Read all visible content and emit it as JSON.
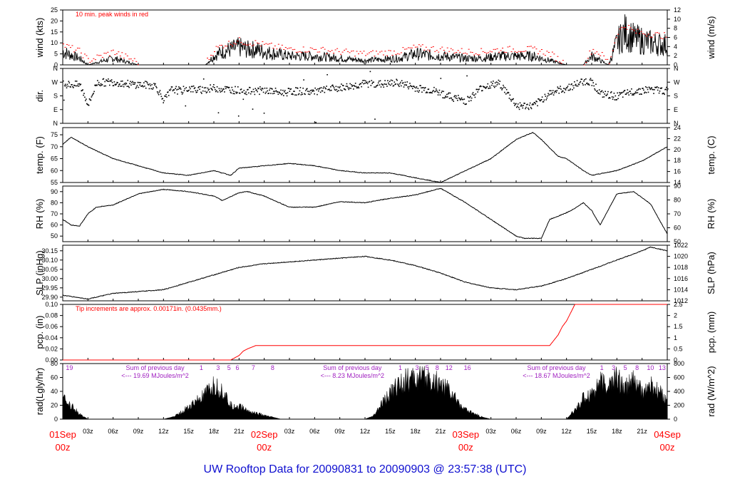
{
  "title": "UW Rooftop Data for 20090831  to  20090903 @ 23:57:38  (UTC)",
  "colors": {
    "line": "#000000",
    "red": "#ff0000",
    "purple": "#a020c0",
    "title": "#1010d0"
  },
  "chart_data": [
    {
      "type": "line",
      "id": "wind",
      "ylabel": "wind (kts)",
      "ylabel_right": "wind (m/s)",
      "ylim": [
        0,
        25
      ],
      "yticks": [
        0,
        5,
        10,
        15,
        20,
        25
      ],
      "right_ticks": [
        0,
        2,
        4,
        6,
        8,
        10,
        12
      ],
      "right_scale": 1.944,
      "annotation": "10 min. peak winds in red",
      "x": [
        0,
        2,
        3,
        6,
        9,
        12,
        15,
        17,
        18,
        19,
        20,
        21,
        22,
        23,
        24,
        27,
        30,
        36,
        40,
        42,
        45,
        48,
        50,
        52,
        54,
        56,
        58,
        60,
        62,
        63,
        64,
        65,
        66,
        67,
        68,
        70,
        72
      ],
      "values": [
        6,
        3,
        0,
        3,
        0,
        0,
        0,
        0,
        4,
        6,
        7,
        8,
        7,
        7,
        6,
        4,
        4,
        2,
        3,
        5,
        4,
        3,
        3,
        4,
        4,
        4,
        2,
        0,
        0,
        4,
        2,
        0,
        10,
        15,
        12,
        10,
        9
      ],
      "peaks": [
        9,
        6,
        2,
        6,
        1,
        0,
        0,
        1,
        7,
        9,
        10,
        11,
        10,
        10,
        9,
        7,
        7,
        5,
        6,
        8,
        7,
        6,
        6,
        7,
        7,
        7,
        5,
        0,
        1,
        7,
        5,
        1,
        15,
        18,
        15,
        14,
        13
      ]
    },
    {
      "type": "scatter",
      "id": "dir",
      "ylabel": "dir.",
      "ylim": [
        0,
        360
      ],
      "tick_labels": [
        "N",
        "E",
        "S",
        "W",
        "N"
      ],
      "tick_values": [
        0,
        90,
        180,
        270,
        360
      ],
      "x": [
        0,
        2,
        3,
        4,
        6,
        8,
        10,
        11,
        12,
        13,
        14,
        15,
        16,
        18,
        20,
        22,
        24,
        26,
        28,
        30,
        32,
        34,
        36,
        38,
        40,
        42,
        44,
        46,
        48,
        50,
        52,
        54,
        56,
        58,
        60,
        62,
        63,
        64,
        66,
        68,
        70,
        72
      ],
      "values": [
        255,
        250,
        120,
        265,
        270,
        255,
        250,
        245,
        150,
        225,
        210,
        230,
        215,
        230,
        220,
        210,
        215,
        200,
        210,
        205,
        225,
        240,
        260,
        255,
        265,
        230,
        215,
        175,
        145,
        240,
        260,
        115,
        110,
        200,
        230,
        275,
        270,
        190,
        175,
        210,
        220,
        210
      ]
    },
    {
      "type": "line",
      "id": "temp",
      "ylabel": "temp. (F)",
      "ylabel_right": "temp. (C)",
      "ylim": [
        55,
        78
      ],
      "yticks": [
        55,
        60,
        65,
        70,
        75
      ],
      "right_ticks": [
        14,
        16,
        18,
        20,
        22,
        24
      ],
      "x": [
        0,
        1,
        3,
        6,
        9,
        12,
        15,
        18,
        20,
        21,
        24,
        27,
        30,
        33,
        36,
        39,
        42,
        45,
        48,
        51,
        54,
        56,
        57,
        59,
        60,
        62,
        63,
        66,
        69,
        72
      ],
      "values": [
        71,
        74,
        70,
        65,
        62,
        59,
        58,
        60,
        58,
        61,
        62,
        63,
        62,
        60,
        59,
        59,
        57,
        55,
        60,
        65,
        73,
        76,
        73,
        66,
        65,
        60,
        58,
        60,
        64,
        70
      ]
    },
    {
      "type": "line",
      "id": "rh",
      "ylabel": "RH (%)",
      "ylabel_right": "RH (%)",
      "ylim": [
        45,
        95
      ],
      "yticks": [
        50,
        60,
        70,
        80,
        90
      ],
      "right_ticks": [
        50,
        60,
        70,
        80,
        90
      ],
      "x": [
        0,
        1,
        2,
        3,
        4,
        6,
        9,
        12,
        15,
        18,
        19,
        21,
        22,
        24,
        27,
        30,
        33,
        36,
        39,
        42,
        45,
        48,
        51,
        54,
        55,
        57,
        58,
        60,
        61,
        62,
        63,
        64,
        66,
        68,
        70,
        72
      ],
      "values": [
        65,
        60,
        59,
        70,
        76,
        78,
        88,
        92,
        90,
        86,
        82,
        89,
        90,
        86,
        76,
        76,
        81,
        80,
        84,
        87,
        93,
        80,
        65,
        50,
        48,
        48,
        65,
        71,
        75,
        80,
        73,
        60,
        88,
        90,
        79,
        52
      ]
    },
    {
      "type": "line",
      "id": "slp",
      "ylabel": "SLP (inHg)",
      "ylabel_right": "SLP (hPa)",
      "ylim": [
        29.88,
        30.18
      ],
      "yticks": [
        29.9,
        29.95,
        30.0,
        30.05,
        30.1,
        30.15
      ],
      "tick_labels": [
        "29.90",
        "29.95",
        "30.00",
        "30.05",
        "30.10",
        "30.15"
      ],
      "right_ticks": [
        1012,
        1014,
        1016,
        1018,
        1020,
        1022
      ],
      "x": [
        0,
        3,
        6,
        9,
        12,
        15,
        18,
        21,
        24,
        27,
        30,
        33,
        36,
        39,
        42,
        45,
        48,
        51,
        54,
        57,
        60,
        63,
        66,
        69,
        70,
        72
      ],
      "values": [
        29.91,
        29.89,
        29.92,
        29.93,
        29.94,
        29.98,
        30.02,
        30.06,
        30.08,
        30.09,
        30.1,
        30.11,
        30.12,
        30.1,
        30.07,
        30.03,
        29.98,
        29.95,
        29.94,
        29.96,
        30.0,
        30.05,
        30.1,
        30.15,
        30.17,
        30.15
      ]
    },
    {
      "type": "line",
      "id": "pcp",
      "ylabel": "pcp. (in)",
      "ylabel_right": "pcp. (mm)",
      "ylim": [
        0,
        0.1
      ],
      "yticks": [
        0,
        0.02,
        0.04,
        0.06,
        0.08,
        0.1
      ],
      "tick_labels": [
        "0.00",
        "0.02",
        "0.04",
        "0.06",
        "0.08",
        "0.10"
      ],
      "right_ticks": [
        "0",
        "0.5",
        "1",
        "1.5",
        "2",
        "2.5"
      ],
      "annotation": "Tip increments are approx. 0.00171in. (0.0435mm.)",
      "x": [
        0,
        20,
        21,
        21.5,
        22,
        23,
        58,
        59,
        59.5,
        60,
        61,
        61.5,
        72
      ],
      "values": [
        0,
        0,
        0.008,
        0.016,
        0.02,
        0.026,
        0.026,
        0.045,
        0.06,
        0.07,
        0.1,
        0.1,
        0.1
      ]
    },
    {
      "type": "area",
      "id": "rad",
      "ylabel": "rad(Lgly/hr)",
      "ylabel_right": "rad (W/m^2)",
      "ylim": [
        0,
        80
      ],
      "yticks": [
        0,
        20,
        40,
        60,
        80
      ],
      "right_ticks": [
        0,
        200,
        400,
        600,
        800
      ],
      "x": [
        0,
        1,
        2,
        3,
        12,
        13,
        14,
        16,
        17,
        18,
        19,
        20,
        21,
        22,
        23,
        24,
        25,
        26,
        27,
        36,
        37,
        38,
        40,
        42,
        44,
        46,
        47,
        48,
        50,
        51,
        52,
        60,
        61,
        62,
        63,
        64,
        65,
        66,
        67,
        68,
        69,
        70,
        71,
        72
      ],
      "values": [
        33,
        25,
        8,
        0,
        0,
        3,
        10,
        30,
        40,
        55,
        48,
        22,
        22,
        14,
        10,
        6,
        3,
        0,
        0,
        0,
        5,
        25,
        60,
        68,
        65,
        50,
        30,
        15,
        3,
        0,
        0,
        0,
        15,
        35,
        45,
        60,
        55,
        70,
        50,
        65,
        45,
        55,
        45,
        35
      ],
      "hour_labels": [
        {
          "x": 0.8,
          "t": "19",
          "c": "purple"
        },
        {
          "x": 16.5,
          "t": "1"
        },
        {
          "x": 18.5,
          "t": "3"
        },
        {
          "x": 19.8,
          "t": "5"
        },
        {
          "x": 20.8,
          "t": "6"
        },
        {
          "x": 22.7,
          "t": "7"
        },
        {
          "x": 25,
          "t": "8"
        },
        {
          "x": 40.2,
          "t": "1"
        },
        {
          "x": 42.2,
          "t": "3"
        },
        {
          "x": 43.4,
          "t": "5"
        },
        {
          "x": 44.6,
          "t": "8"
        },
        {
          "x": 46,
          "t": "12"
        },
        {
          "x": 48.2,
          "t": "16"
        },
        {
          "x": 64.2,
          "t": "1"
        },
        {
          "x": 65.6,
          "t": "3"
        },
        {
          "x": 67,
          "t": "5"
        },
        {
          "x": 68.4,
          "t": "8"
        },
        {
          "x": 70,
          "t": "10"
        },
        {
          "x": 71.4,
          "t": "13"
        }
      ],
      "sum_labels": [
        {
          "x": 11,
          "l1": "Sum of previous day",
          "l2": "<--- 19.69 MJoules/m^2"
        },
        {
          "x": 34.5,
          "l1": "Sum of previous day",
          "l2": "<--- 8.23 MJoules/m^2"
        },
        {
          "x": 58.8,
          "l1": "Sum of previous day",
          "l2": "<--- 18.67 MJoules/m^2"
        }
      ]
    }
  ],
  "x_axis": {
    "xlim": [
      0,
      72
    ],
    "hour_ticks": [
      "03z",
      "06z",
      "09z",
      "12z",
      "15z",
      "18z",
      "21z"
    ],
    "day_labels": [
      {
        "x": 0,
        "date": "01Sep",
        "hour": "00z"
      },
      {
        "x": 24,
        "date": "02Sep",
        "hour": "00z"
      },
      {
        "x": 48,
        "date": "03Sep",
        "hour": "00z"
      },
      {
        "x": 72,
        "date": "04Sep",
        "hour": "00z"
      }
    ]
  }
}
